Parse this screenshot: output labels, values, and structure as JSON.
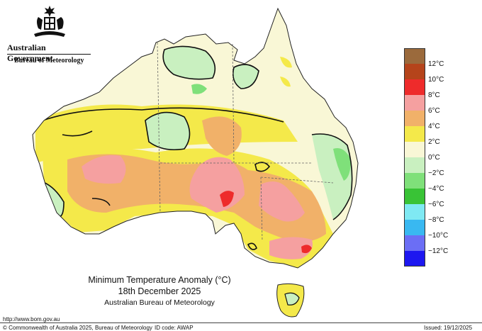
{
  "header": {
    "government": "Australian Government",
    "agency": "Bureau of Meteorology"
  },
  "map": {
    "title": "Minimum Temperature Anomaly (°C)",
    "date": "18th December 2025",
    "source": "Australian Bureau of Meteorology"
  },
  "legend": {
    "labels": [
      "12°C",
      "10°C",
      "8°C",
      "6°C",
      "4°C",
      "2°C",
      "0°C",
      "−2°C",
      "−4°C",
      "−6°C",
      "−8°C",
      "−10°C",
      "−12°C"
    ],
    "colors": [
      "#9b6a3c",
      "#b5441b",
      "#ee2b2b",
      "#f5a0a0",
      "#f1b169",
      "#f4e94a",
      "#f9f7d6",
      "#c9f0c0",
      "#7fe07a",
      "#39c336",
      "#7fe9f3",
      "#39b8f1",
      "#6b6ef5",
      "#1d17f0"
    ]
  },
  "footer": {
    "url": "http://www.bom.gov.au",
    "copyright": "© Commonwealth of Australia 2025, Bureau of Meteorology",
    "id_code": "ID code: AWAP",
    "issued": "Issued: 19/12/2025"
  }
}
